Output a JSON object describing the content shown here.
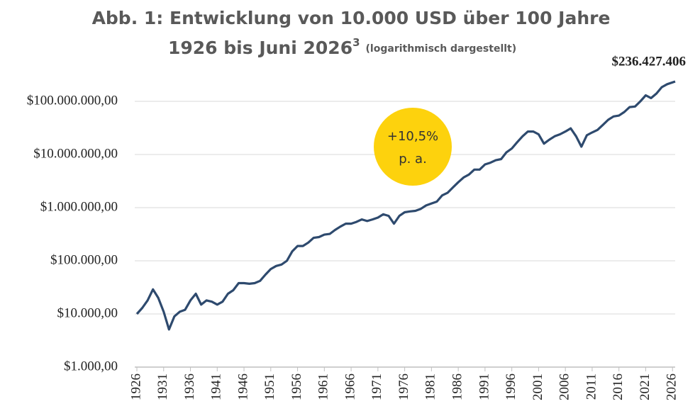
{
  "chart_data": {
    "type": "line",
    "title": "Abb. 1: Entwicklung von 10.000 USD über 100 Jahre",
    "subtitle": "1926 bis Juni 2026",
    "subtitle_superscript": "3",
    "subtitle_note": "(logarithmisch dargestellt)",
    "annotations": [
      "+10,5%",
      "p. a."
    ],
    "log_scale": true,
    "grid": true,
    "xlim": [
      1926,
      2026.5
    ],
    "xticks": [
      1926,
      1931,
      1936,
      1941,
      1946,
      1951,
      1956,
      1961,
      1966,
      1971,
      1976,
      1981,
      1986,
      1991,
      1996,
      2001,
      2006,
      2011,
      2016,
      2021,
      2026
    ],
    "ylim": [
      1000,
      1000000000
    ],
    "yticks": [
      {
        "value": 1000,
        "label": "$1.000,00"
      },
      {
        "value": 10000,
        "label": "$10.000,00"
      },
      {
        "value": 100000,
        "label": "$100.000,00"
      },
      {
        "value": 1000000,
        "label": "$1.000.000,00"
      },
      {
        "value": 10000000,
        "label": "$10.000.000,00"
      },
      {
        "value": 100000000,
        "label": "$100.000.000,00"
      }
    ],
    "x": [
      1926,
      1927,
      1928,
      1929,
      1930,
      1931,
      1932,
      1933,
      1934,
      1935,
      1936,
      1937,
      1938,
      1939,
      1940,
      1941,
      1942,
      1943,
      1944,
      1945,
      1946,
      1947,
      1948,
      1949,
      1950,
      1951,
      1952,
      1953,
      1954,
      1955,
      1956,
      1957,
      1958,
      1959,
      1960,
      1961,
      1962,
      1963,
      1964,
      1965,
      1966,
      1967,
      1968,
      1969,
      1970,
      1971,
      1972,
      1973,
      1974,
      1975,
      1976,
      1977,
      1978,
      1979,
      1980,
      1981,
      1982,
      1983,
      1984,
      1985,
      1986,
      1987,
      1988,
      1989,
      1990,
      1991,
      1992,
      1993,
      1994,
      1995,
      1996,
      1997,
      1998,
      1999,
      2000,
      2001,
      2002,
      2003,
      2004,
      2005,
      2006,
      2007,
      2008,
      2009,
      2010,
      2011,
      2012,
      2013,
      2014,
      2015,
      2016,
      2017,
      2018,
      2019,
      2020,
      2021,
      2022,
      2023,
      2024,
      2025,
      2026.5
    ],
    "series": [
      {
        "color": "#2e4a6e",
        "values": [
          10000,
          13000,
          18000,
          29000,
          20000,
          11000,
          5100,
          9000,
          11000,
          12000,
          18000,
          24000,
          15000,
          18000,
          17000,
          15000,
          17000,
          24000,
          28000,
          38000,
          38000,
          37000,
          38000,
          42000,
          55000,
          70000,
          80000,
          85000,
          100000,
          150000,
          190000,
          190000,
          220000,
          270000,
          280000,
          310000,
          320000,
          380000,
          440000,
          500000,
          500000,
          540000,
          600000,
          560000,
          600000,
          650000,
          750000,
          700000,
          500000,
          700000,
          820000,
          850000,
          870000,
          950000,
          1100000,
          1200000,
          1300000,
          1700000,
          1900000,
          2400000,
          3000000,
          3700000,
          4200000,
          5200000,
          5200000,
          6500000,
          7000000,
          7800000,
          8200000,
          11000000,
          13000000,
          17000000,
          22000000,
          27000000,
          27000000,
          24000000,
          16000000,
          19000000,
          22000000,
          24000000,
          27000000,
          31000000,
          22000000,
          14000000,
          23000000,
          26000000,
          29000000,
          36000000,
          45000000,
          52000000,
          54000000,
          63000000,
          78000000,
          80000000,
          100000000,
          130000000,
          115000000,
          140000000,
          185000000,
          210000000,
          236427406
        ],
        "value_labels": [
          null,
          null,
          null,
          null,
          null,
          null,
          null,
          null,
          null,
          null,
          null,
          null,
          null,
          null,
          null,
          null,
          null,
          null,
          null,
          null,
          null,
          null,
          null,
          null,
          null,
          null,
          null,
          null,
          null,
          null,
          null,
          null,
          null,
          null,
          null,
          null,
          null,
          null,
          null,
          null,
          null,
          null,
          null,
          null,
          null,
          null,
          null,
          null,
          null,
          null,
          null,
          null,
          null,
          null,
          null,
          null,
          null,
          null,
          null,
          null,
          null,
          null,
          null,
          null,
          null,
          null,
          null,
          null,
          null,
          null,
          null,
          null,
          null,
          null,
          null,
          null,
          null,
          null,
          null,
          null,
          null,
          null,
          null,
          null,
          null,
          null,
          null,
          null,
          null,
          null,
          null,
          null,
          null,
          null,
          null,
          null,
          null,
          null,
          null,
          null,
          "$236.427.406"
        ]
      }
    ],
    "annotation_color": "#fdd20d"
  }
}
